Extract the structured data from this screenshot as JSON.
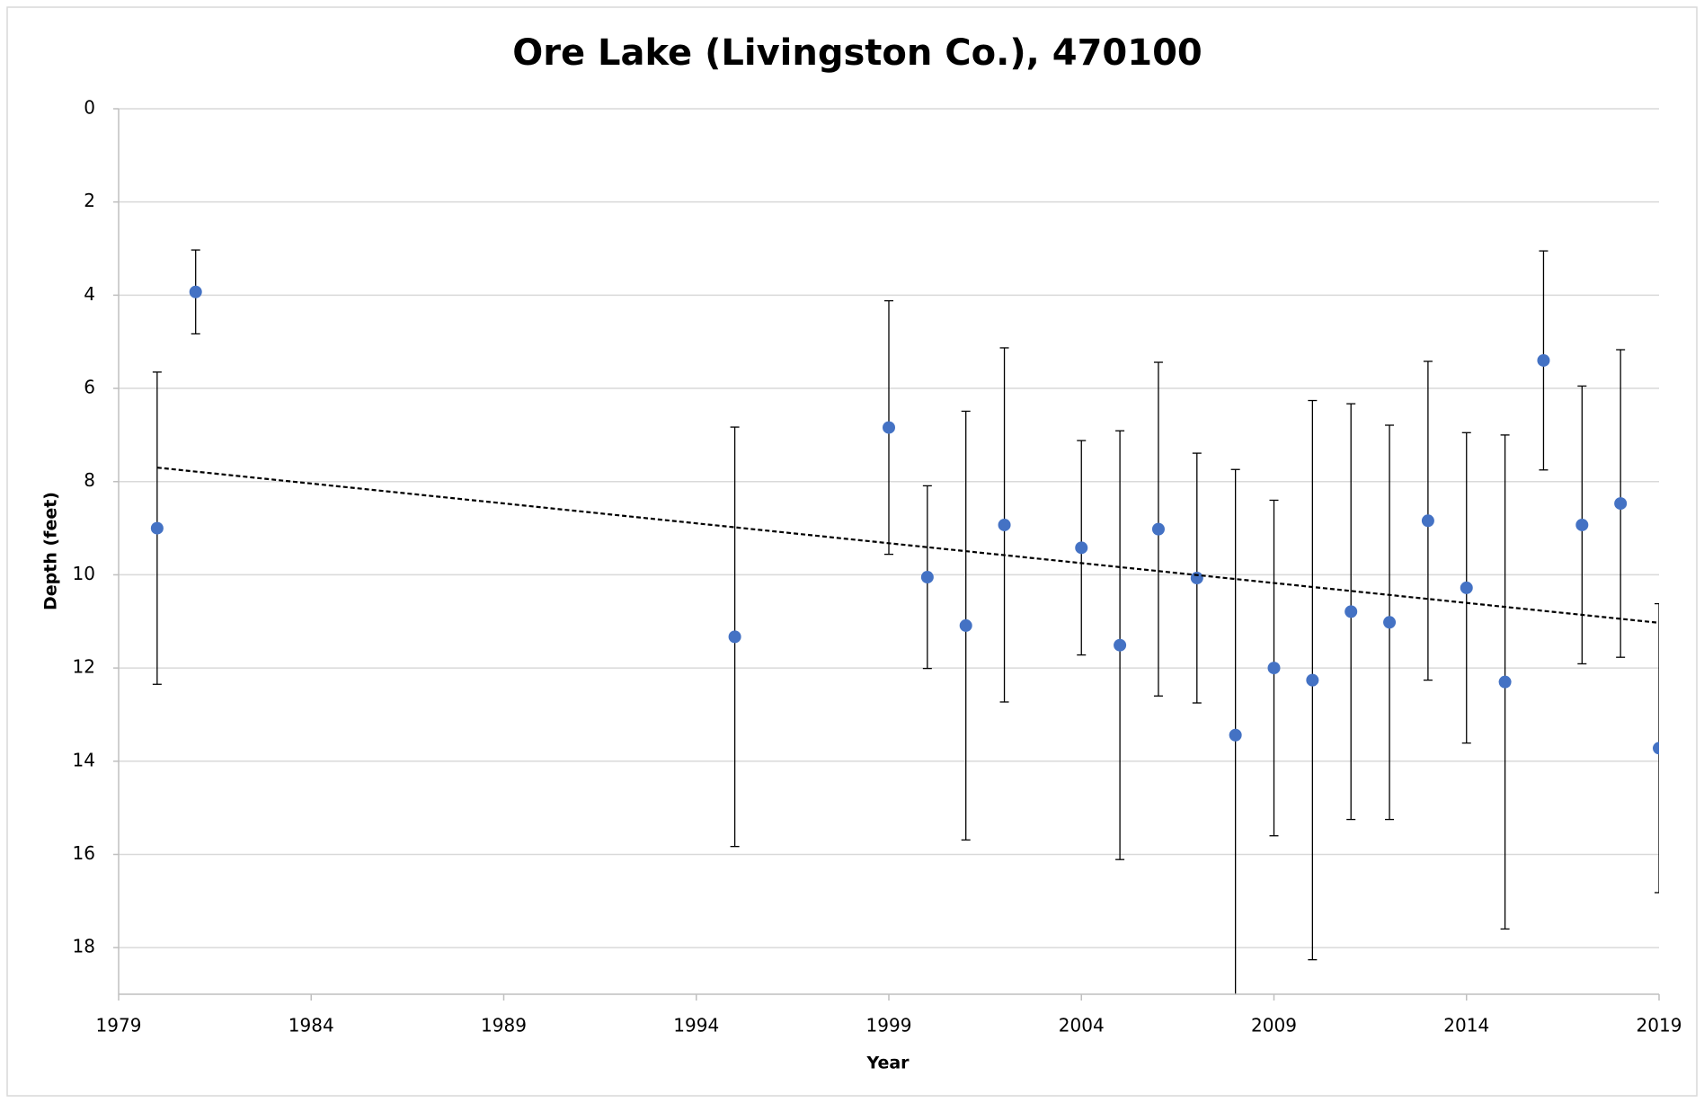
{
  "chart_data": {
    "type": "scatter",
    "title": "Ore Lake (Livingston Co.), 470100",
    "x_label": "Year",
    "y_label": "Depth (feet)",
    "xlim": [
      1979,
      2019
    ],
    "xticks": [
      1979,
      1984,
      1989,
      1994,
      1999,
      2004,
      2009,
      2014,
      2019
    ],
    "ylim": [
      0,
      19
    ],
    "yticks": [
      0,
      2,
      4,
      6,
      8,
      10,
      12,
      14,
      16,
      18
    ],
    "y_reversed": true,
    "grid": true,
    "series": [
      {
        "name": "Depth",
        "color": "#4472c4",
        "x": [
          1980,
          1981,
          1995,
          1999,
          2000,
          2001,
          2002,
          2004,
          2005,
          2006,
          2007,
          2008,
          2009,
          2010,
          2011,
          2012,
          2013,
          2014,
          2015,
          2016,
          2017,
          2018,
          2019
        ],
        "values": [
          9.0,
          3.93,
          11.33,
          6.84,
          10.05,
          11.09,
          8.93,
          9.42,
          11.51,
          9.02,
          10.07,
          13.44,
          12.0,
          12.26,
          10.79,
          11.02,
          8.84,
          10.28,
          12.3,
          5.4,
          8.93,
          8.47,
          13.72
        ],
        "errors": [
          3.35,
          0.9,
          4.5,
          2.72,
          1.96,
          4.6,
          3.8,
          2.3,
          4.6,
          3.58,
          2.68,
          5.7,
          3.6,
          6.0,
          4.46,
          4.23,
          3.42,
          3.33,
          5.3,
          2.35,
          2.98,
          3.3,
          3.1
        ]
      }
    ],
    "trendline": {
      "x": [
        1980,
        2019
      ],
      "values": [
        7.7,
        11.03
      ],
      "color": "#000000",
      "dashed": true
    }
  }
}
